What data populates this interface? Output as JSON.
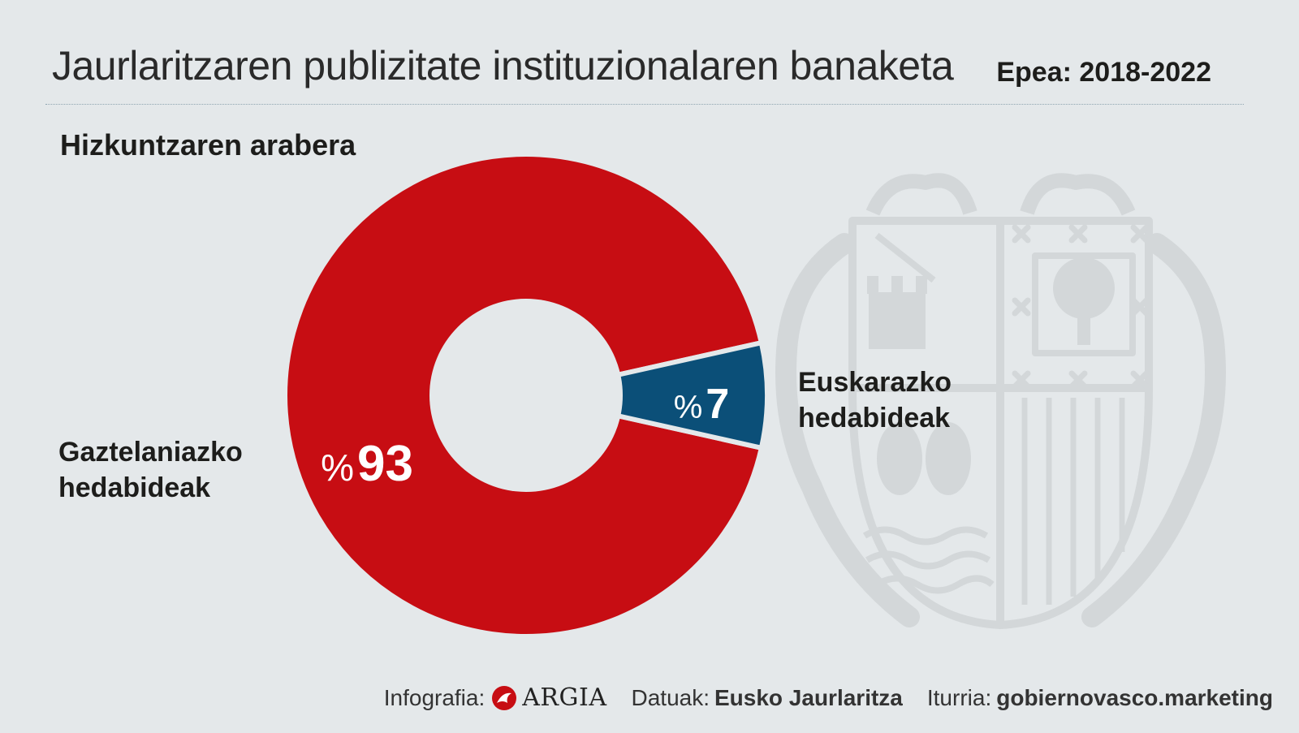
{
  "header": {
    "title": "Jaurlaritzaren publizitate instituzionalaren banaketa",
    "period": "Epea: 2018-2022"
  },
  "colors": {
    "background": "#e4e8ea",
    "spanish": "#c70d13",
    "basque": "#0b4f78",
    "emblem": "#d3d7d9"
  },
  "chart_data": {
    "type": "pie",
    "subtitle": "Hizkuntzaren arabera",
    "slices": [
      {
        "label_line1": "Gaztelaniazko",
        "label_line2": "hedabideak",
        "value": 93,
        "value_prefix": "%",
        "value_text": "93",
        "color": "#c70d13"
      },
      {
        "label_line1": "Euskarazko",
        "label_line2": "hedabideak",
        "value": 7,
        "value_prefix": "%",
        "value_text": "7",
        "color": "#0b4f78"
      }
    ],
    "unit": "%"
  },
  "footer": {
    "infographic_label": "Infografia:",
    "brand": "ARGIA",
    "data_label": "Datuak:",
    "data_value": "Eusko Jaurlaritza",
    "source_label": "Iturria:",
    "source_value": "gobiernovasco.marketing"
  }
}
